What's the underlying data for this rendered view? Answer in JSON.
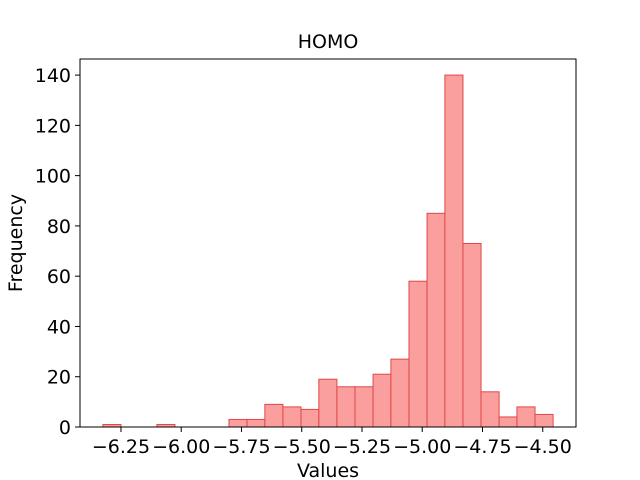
{
  "chart_data": {
    "type": "histogram",
    "title": "HOMO",
    "xlabel": "Values",
    "ylabel": "Frequency",
    "bins": [
      -6.325,
      -6.25,
      -6.176,
      -6.101,
      -6.026,
      -5.951,
      -5.877,
      -5.802,
      -5.727,
      -5.653,
      -5.578,
      -5.503,
      -5.429,
      -5.354,
      -5.279,
      -5.204,
      -5.13,
      -5.055,
      -4.98,
      -4.906,
      -4.831,
      -4.756,
      -4.681,
      -4.607,
      -4.532,
      -4.457
    ],
    "values": [
      1,
      0,
      0,
      1,
      0,
      0,
      0,
      3,
      3,
      9,
      8,
      7,
      19,
      16,
      16,
      21,
      27,
      58,
      85,
      140,
      73,
      14,
      4,
      8,
      5
    ],
    "color": "#fa9e9e",
    "edgecolor": "#e04848",
    "xlim": [
      -6.42,
      -4.362
    ],
    "ylim": [
      0,
      146.4
    ],
    "xticks": [
      {
        "value": -6.25,
        "label": "−6.25"
      },
      {
        "value": -6.0,
        "label": "−6.00"
      },
      {
        "value": -5.75,
        "label": "−5.75"
      },
      {
        "value": -5.5,
        "label": "−5.50"
      },
      {
        "value": -5.25,
        "label": "−5.25"
      },
      {
        "value": -5.0,
        "label": "−5.00"
      },
      {
        "value": -4.75,
        "label": "−4.75"
      },
      {
        "value": -4.5,
        "label": "−4.50"
      }
    ],
    "yticks": [
      0,
      20,
      40,
      60,
      80,
      100,
      120,
      140
    ]
  }
}
